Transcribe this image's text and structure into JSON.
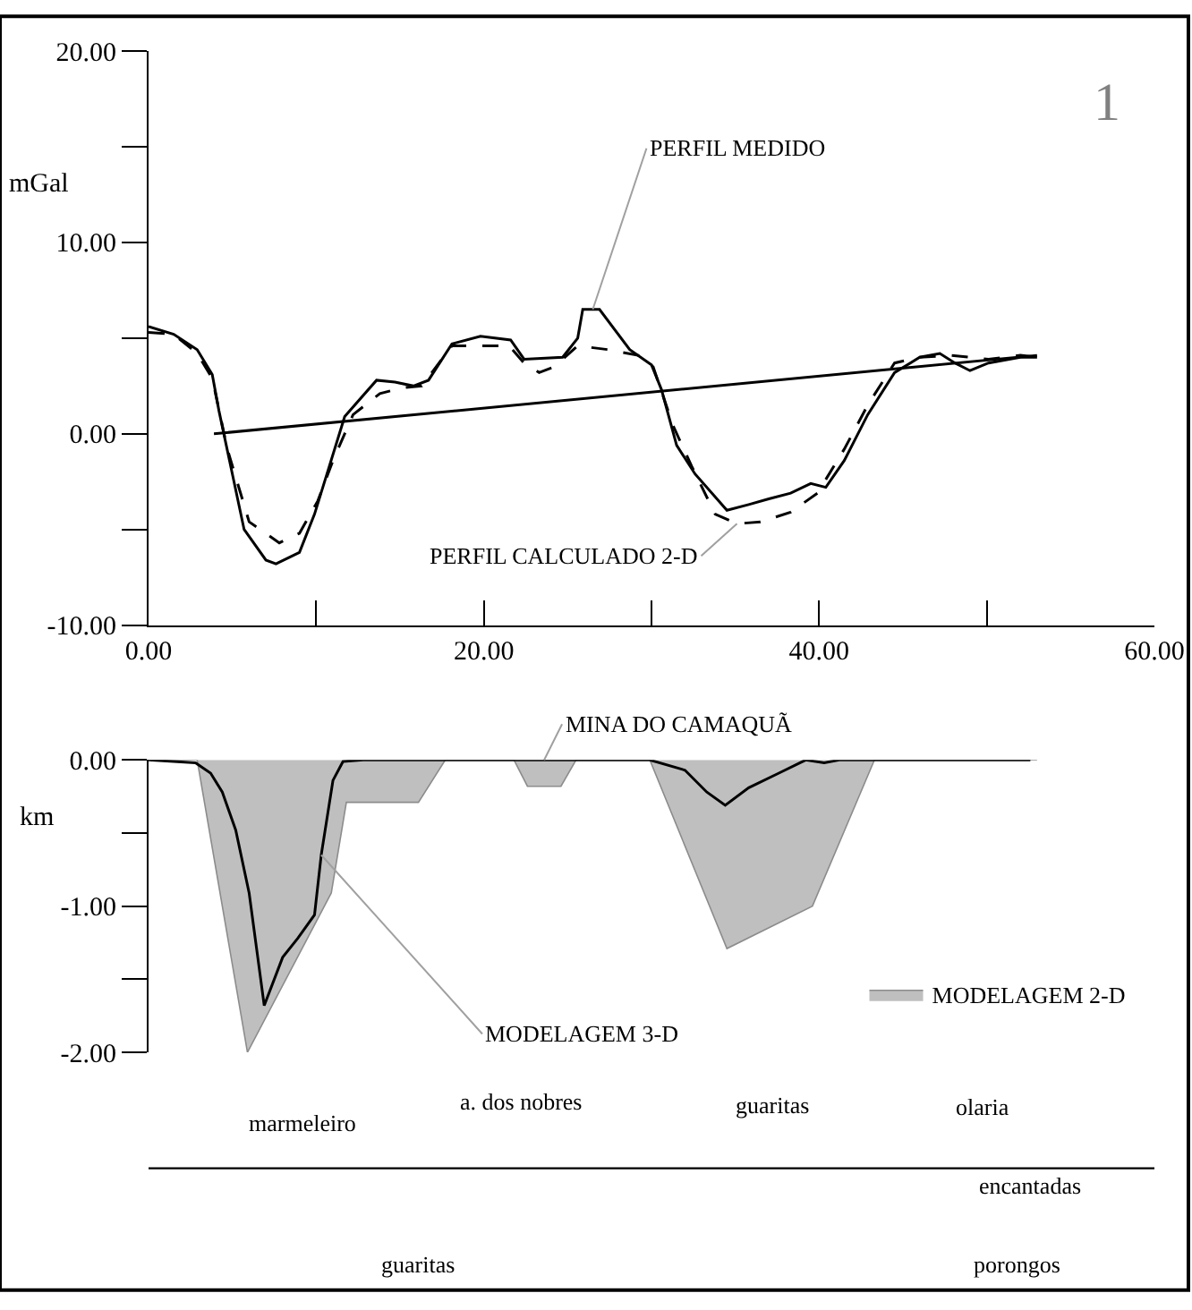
{
  "chart_data": [
    {
      "type": "line",
      "ylabel": "mGal",
      "xlim": [
        0,
        60
      ],
      "ylim": [
        -10,
        20
      ],
      "xticks": [
        {
          "value": 0,
          "label": "0.00"
        },
        {
          "value": 10,
          "label": null
        },
        {
          "value": 20,
          "label": "20.00"
        },
        {
          "value": 30,
          "label": null
        },
        {
          "value": 40,
          "label": "40.00"
        },
        {
          "value": 50,
          "label": null
        },
        {
          "value": 60,
          "label": "60.00"
        }
      ],
      "yticks": [
        {
          "value": -10,
          "label": "-10.00"
        },
        {
          "value": -5,
          "label": null
        },
        {
          "value": 0,
          "label": "0.00"
        },
        {
          "value": 5,
          "label": null
        },
        {
          "value": 10,
          "label": "10.00"
        },
        {
          "value": 15,
          "label": null
        },
        {
          "value": 20,
          "label": "20.00"
        }
      ],
      "legend": false,
      "marker": "none",
      "series": [
        {
          "color": "#000000",
          "line_style": "solid",
          "x": [
            0,
            1.5,
            2.9,
            3.8,
            4.2,
            5.7,
            7.0,
            7.6,
            9.0,
            9.9,
            11.7,
            13.6,
            14.7,
            15.8,
            16.7,
            18.1,
            19.8,
            21.6,
            22.4,
            24.7,
            25.6,
            25.9,
            26.9,
            28.7,
            30.0,
            30.6,
            31.5,
            32.6,
            34.5,
            35.8,
            37.0,
            38.3,
            39.5,
            40.4,
            41.5,
            42.9,
            44.5,
            46.0,
            47.2,
            48.1,
            49.0,
            50.1,
            52.0,
            53.0
          ],
          "values": [
            5.6,
            5.2,
            4.4,
            3.1,
            1.2,
            -5.0,
            -6.6,
            -6.8,
            -6.2,
            -4.2,
            0.9,
            2.8,
            2.7,
            2.5,
            2.8,
            4.7,
            5.1,
            4.9,
            3.9,
            4.0,
            5.0,
            6.5,
            6.5,
            4.4,
            3.6,
            2.3,
            -0.6,
            -2.1,
            -4.0,
            -3.7,
            -3.4,
            -3.1,
            -2.6,
            -2.8,
            -1.4,
            1.0,
            3.2,
            4.0,
            4.2,
            3.7,
            3.3,
            3.7,
            4.0,
            4.0
          ]
        },
        {
          "color": "#000000",
          "line_style": "dashed",
          "x": [
            0,
            1.5,
            2.9,
            3.8,
            4.7,
            6.0,
            7.8,
            9.0,
            10.1,
            11.0,
            12.2,
            13.8,
            15.1,
            16.3,
            18.1,
            21.5,
            22.4,
            23.3,
            24.2,
            25.6,
            27.4,
            29.2,
            30.1,
            31.3,
            32.4,
            33.8,
            35.1,
            36.5,
            38.3,
            39.9,
            41.5,
            42.9,
            44.5,
            46.0,
            47.9,
            50.1,
            52.0,
            53.0
          ],
          "values": [
            5.3,
            5.2,
            4.2,
            2.9,
            -0.8,
            -4.6,
            -5.7,
            -5.2,
            -3.5,
            -1.4,
            1.0,
            2.1,
            2.4,
            2.5,
            4.6,
            4.6,
            3.7,
            3.2,
            3.5,
            4.6,
            4.4,
            4.1,
            3.5,
            0.4,
            -1.7,
            -4.2,
            -4.7,
            -4.6,
            -4.1,
            -3.1,
            -0.8,
            1.5,
            3.7,
            4.0,
            4.1,
            3.9,
            4.1,
            4.0
          ]
        },
        {
          "color": "#000000",
          "line_style": "solid",
          "x": [
            3.9,
            53.0
          ],
          "values": [
            0,
            4.1
          ]
        }
      ],
      "annotations": [
        {
          "text": "PERFIL MEDIDO",
          "x": 26.5,
          "y": 6.5
        },
        {
          "text": "PERFIL CALCULADO 2-D",
          "x": 35.1,
          "y": -4.7
        },
        "1"
      ]
    },
    {
      "type": "area",
      "ylabel": "km",
      "xlim": [
        0,
        60
      ],
      "ylim": [
        -2,
        0
      ],
      "tick_labels": "y",
      "yticks": [
        {
          "value": -2,
          "label": "-2.00"
        },
        {
          "value": -1.5,
          "label": null
        },
        {
          "value": -1,
          "label": "-1.00"
        },
        {
          "value": -0.5,
          "label": null
        },
        {
          "value": 0,
          "label": "0.00"
        }
      ],
      "legend": "bottom right",
      "marker": "none",
      "series": [
        {
          "name": "MODELAGEM 2-D",
          "color": "#bfbfbf",
          "x": [
            0,
            2.9,
            5.9,
            10.9,
            11.8,
            16.1,
            17.7,
            21.8,
            22.6,
            24.6,
            25.5,
            29.9,
            34.5,
            39.6,
            43.3,
            53.0
          ],
          "values": [
            0,
            0,
            -2.0,
            -0.91,
            -0.29,
            -0.29,
            0,
            0,
            -0.18,
            -0.18,
            0,
            0,
            -1.29,
            -1.0,
            0,
            0
          ]
        },
        {
          "type": "line",
          "color": "#000000",
          "x": [
            0,
            2.8,
            3.7,
            4.4,
            5.2,
            6.0,
            6.9,
            8.0,
            8.9,
            9.9,
            10.3,
            11.0,
            11.6,
            12.8,
            29.9,
            32.0,
            33.3,
            34.4,
            35.8,
            37.6,
            39.2,
            40.3,
            41.2,
            52.6
          ],
          "values": [
            0,
            -0.02,
            -0.09,
            -0.22,
            -0.48,
            -0.91,
            -1.68,
            -1.35,
            -1.22,
            -1.06,
            -0.65,
            -0.14,
            -0.01,
            0,
            0,
            -0.07,
            -0.22,
            -0.31,
            -0.19,
            -0.09,
            0,
            -0.02,
            0,
            0
          ]
        }
      ],
      "annotations": [
        {
          "text": "MINA DO CAMAQUÃ",
          "x": 23.6,
          "y": 0
        },
        {
          "text": "MODELAGEM 3-D",
          "x": 10.3,
          "y": -0.65
        }
      ]
    },
    {
      "type": "other",
      "annotations": [
        "marmeleiro",
        "a. dos nobres",
        "guaritas",
        "guaritas",
        "olaria",
        "encantadas",
        "porongos"
      ]
    }
  ]
}
